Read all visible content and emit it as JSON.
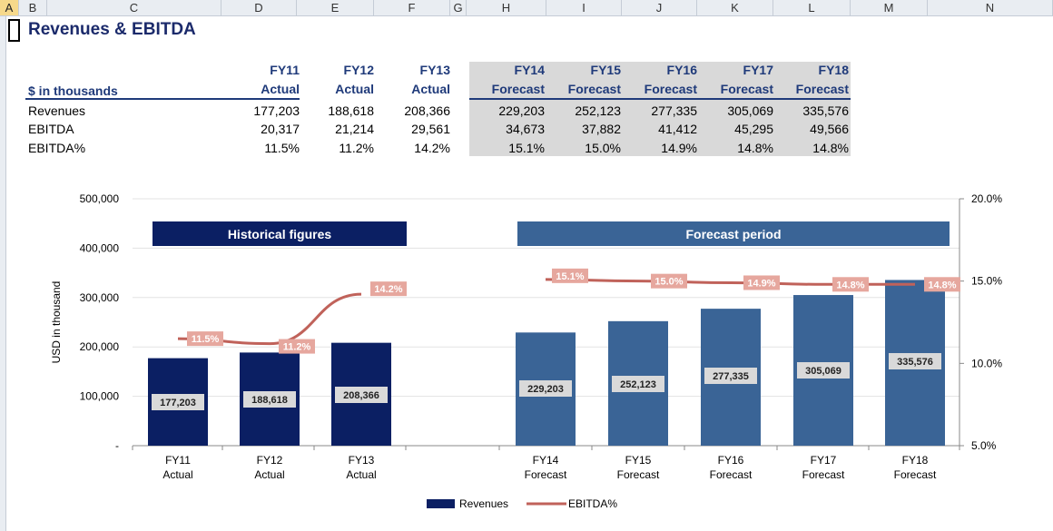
{
  "columns": [
    "A",
    "B",
    "C",
    "D",
    "E",
    "F",
    "G",
    "H",
    "I",
    "J",
    "K",
    "L",
    "M",
    "N"
  ],
  "title": "Revenues & EBITDA",
  "table": {
    "unit_label": "$ in thousands",
    "years": [
      "FY11",
      "FY12",
      "FY13",
      "FY14",
      "FY15",
      "FY16",
      "FY17",
      "FY18"
    ],
    "types": [
      "Actual",
      "Actual",
      "Actual",
      "Forecast",
      "Forecast",
      "Forecast",
      "Forecast",
      "Forecast"
    ],
    "rows": [
      {
        "label": "Revenues",
        "values": [
          "177,203",
          "188,618",
          "208,366",
          "229,203",
          "252,123",
          "277,335",
          "305,069",
          "335,576"
        ]
      },
      {
        "label": "EBITDA",
        "values": [
          "20,317",
          "21,214",
          "29,561",
          "34,673",
          "37,882",
          "41,412",
          "45,295",
          "49,566"
        ]
      },
      {
        "label": "EBITDA%",
        "values": [
          "11.5%",
          "11.2%",
          "14.2%",
          "15.1%",
          "15.0%",
          "14.9%",
          "14.8%",
          "14.8%"
        ]
      }
    ]
  },
  "chart_data": {
    "type": "bar",
    "categories": [
      "FY11 Actual",
      "FY12 Actual",
      "FY13 Actual",
      "FY14 Forecast",
      "FY15 Forecast",
      "FY16 Forecast",
      "FY17 Forecast",
      "FY18 Forecast"
    ],
    "category_lines": [
      [
        "FY11",
        "Actual"
      ],
      [
        "FY12",
        "Actual"
      ],
      [
        "FY13",
        "Actual"
      ],
      [
        "FY14",
        "Forecast"
      ],
      [
        "FY15",
        "Forecast"
      ],
      [
        "FY16",
        "Forecast"
      ],
      [
        "FY17",
        "Forecast"
      ],
      [
        "FY18",
        "Forecast"
      ]
    ],
    "series": [
      {
        "name": "Revenues",
        "type": "bar",
        "axis": "left",
        "values": [
          177203,
          188618,
          208366,
          229203,
          252123,
          277335,
          305069,
          335576
        ],
        "labels": [
          "177,203",
          "188,618",
          "208,366",
          "229,203",
          "252,123",
          "277,335",
          "305,069",
          "335,576"
        ]
      },
      {
        "name": "EBITDA%",
        "type": "line",
        "axis": "right",
        "values": [
          11.5,
          11.2,
          14.2,
          15.1,
          15.0,
          14.9,
          14.8,
          14.8
        ],
        "labels": [
          "11.5%",
          "11.2%",
          "14.2%",
          "15.1%",
          "15.0%",
          "14.9%",
          "14.8%",
          "14.8%"
        ]
      }
    ],
    "ylabel": "USD in thousand",
    "ylim": [
      0,
      500000
    ],
    "y_ticks": [
      "-",
      "100,000",
      "200,000",
      "300,000",
      "400,000",
      "500,000"
    ],
    "y2lim": [
      5.0,
      20.0
    ],
    "y2_ticks": [
      "5.0%",
      "10.0%",
      "15.0%",
      "20.0%"
    ],
    "bands": [
      {
        "label": "Historical figures",
        "color": "#0b1f63"
      },
      {
        "label": "Forecast period",
        "color": "#3a6496"
      }
    ],
    "colors": {
      "historical_bar": "#0b1f63",
      "forecast_bar": "#3a6496",
      "line": "#c0625a",
      "line_label_bg": "#e6a79e"
    },
    "legend": "bottom",
    "grid": true
  }
}
